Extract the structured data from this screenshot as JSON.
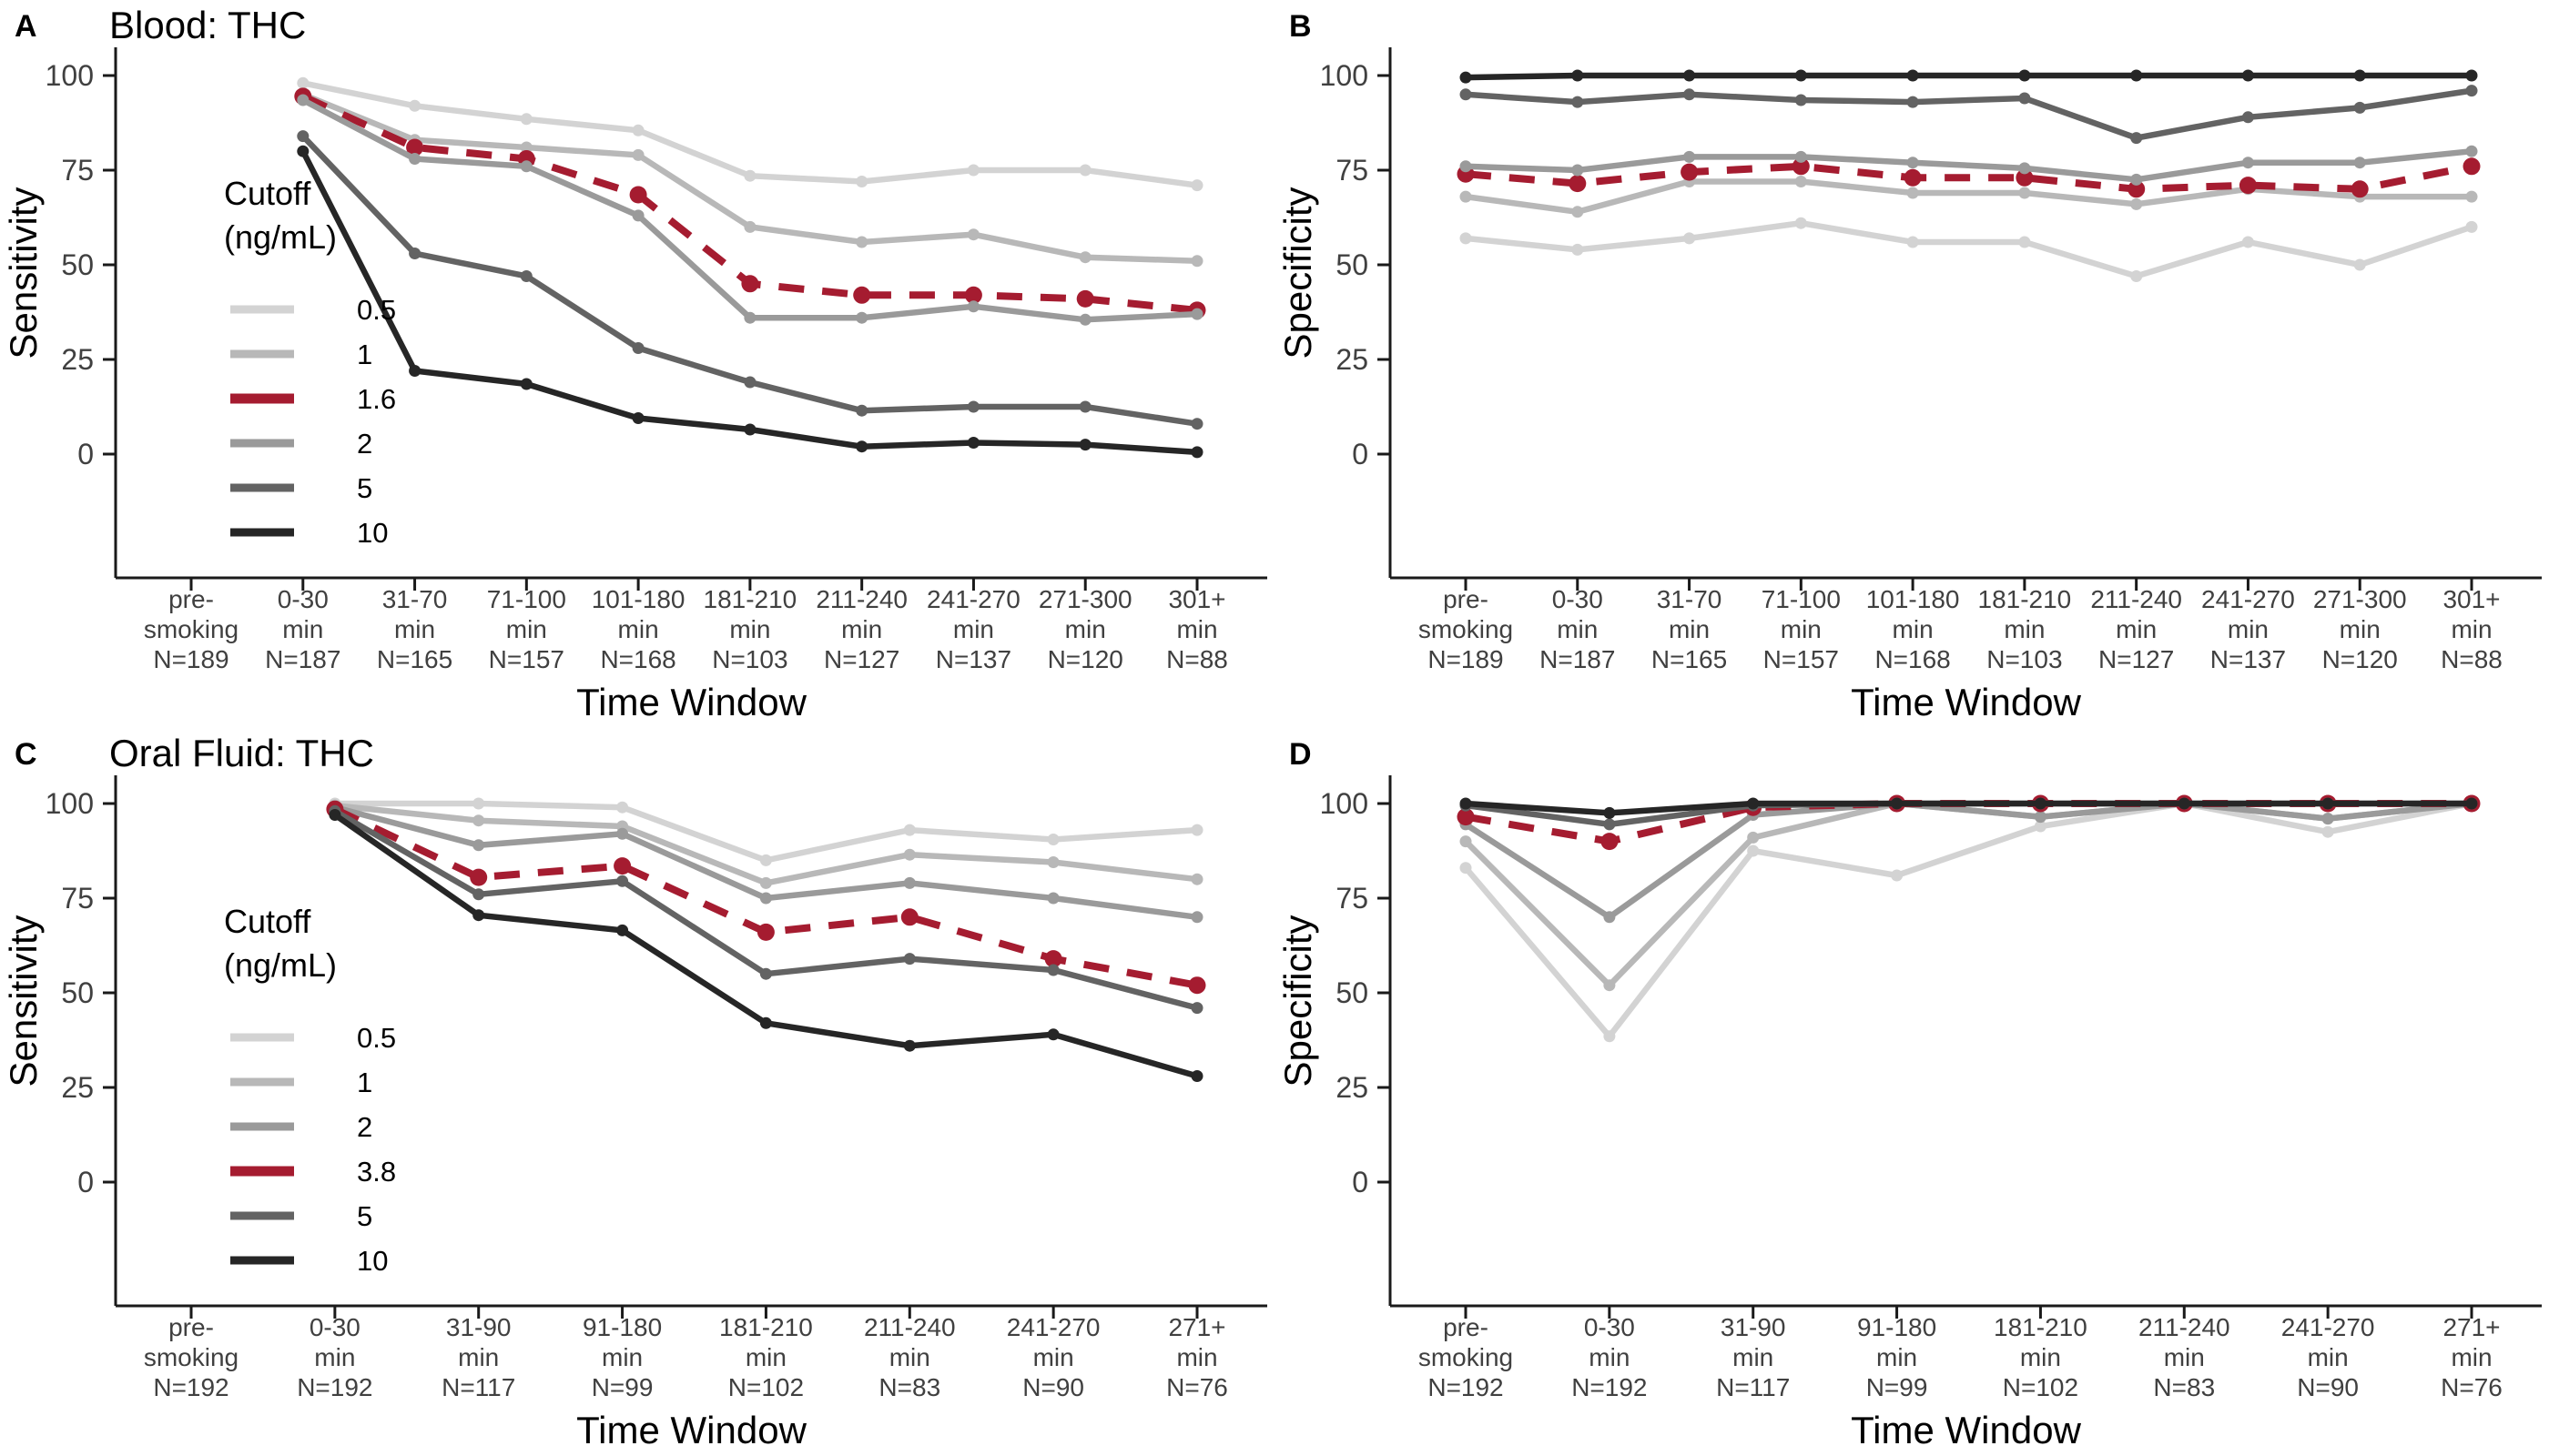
{
  "chart_data": [
    {
      "id": "A",
      "panel_label": "A",
      "type": "line",
      "title": "Blood: THC",
      "xlabel": "Time Window",
      "ylabel": "Sensitivity",
      "ylim": [
        0,
        100
      ],
      "yticks": [
        0,
        25,
        50,
        75,
        100
      ],
      "legend": {
        "title": [
          "Cutoff",
          "(ng/mL)"
        ],
        "position": "inside-left"
      },
      "categories": [
        [
          "pre-",
          "smoking",
          "N=189"
        ],
        [
          "0-30",
          "min",
          "N=187"
        ],
        [
          "31-70",
          "min",
          "N=165"
        ],
        [
          "71-100",
          "min",
          "N=157"
        ],
        [
          "101-180",
          "min",
          "N=168"
        ],
        [
          "181-210",
          "min",
          "N=103"
        ],
        [
          "211-240",
          "min",
          "N=127"
        ],
        [
          "241-270",
          "min",
          "N=137"
        ],
        [
          "271-300",
          "min",
          "N=120"
        ],
        [
          "301+",
          "min",
          "N=88"
        ]
      ],
      "series": [
        {
          "name": "0.5",
          "color": "#d3d3d3",
          "dash": false,
          "values": [
            null,
            98,
            92,
            88.5,
            85.5,
            73.5,
            72,
            75,
            75,
            71
          ]
        },
        {
          "name": "1",
          "color": "#b8b8b8",
          "dash": false,
          "values": [
            null,
            95,
            83,
            81,
            79,
            60,
            56,
            58,
            52,
            51
          ]
        },
        {
          "name": "1.6",
          "color": "#a51c30",
          "dash": true,
          "values": [
            null,
            94.5,
            81,
            78,
            68.5,
            45,
            42,
            42,
            41,
            38
          ]
        },
        {
          "name": "2",
          "color": "#9a9a9a",
          "dash": false,
          "values": [
            null,
            93.5,
            78,
            76,
            63,
            36,
            36,
            39,
            35.5,
            37
          ]
        },
        {
          "name": "5",
          "color": "#636363",
          "dash": false,
          "values": [
            null,
            84,
            53,
            47,
            28,
            19,
            11.5,
            12.5,
            12.5,
            8
          ]
        },
        {
          "name": "10",
          "color": "#262626",
          "dash": false,
          "values": [
            null,
            80,
            22,
            18.5,
            9.5,
            6.5,
            2,
            3,
            2.5,
            0.5
          ]
        }
      ]
    },
    {
      "id": "B",
      "panel_label": "B",
      "type": "line",
      "title": "",
      "xlabel": "Time Window",
      "ylabel": "Specificity",
      "ylim": [
        0,
        100
      ],
      "yticks": [
        0,
        25,
        50,
        75,
        100
      ],
      "legend": null,
      "categories": [
        [
          "pre-",
          "smoking",
          "N=189"
        ],
        [
          "0-30",
          "min",
          "N=187"
        ],
        [
          "31-70",
          "min",
          "N=165"
        ],
        [
          "71-100",
          "min",
          "N=157"
        ],
        [
          "101-180",
          "min",
          "N=168"
        ],
        [
          "181-210",
          "min",
          "N=103"
        ],
        [
          "211-240",
          "min",
          "N=127"
        ],
        [
          "241-270",
          "min",
          "N=137"
        ],
        [
          "271-300",
          "min",
          "N=120"
        ],
        [
          "301+",
          "min",
          "N=88"
        ]
      ],
      "series": [
        {
          "name": "0.5",
          "color": "#d3d3d3",
          "dash": false,
          "values": [
            57,
            54,
            57,
            61,
            56,
            56,
            47,
            56,
            50,
            60
          ]
        },
        {
          "name": "1",
          "color": "#b8b8b8",
          "dash": false,
          "values": [
            68,
            64,
            72,
            72,
            69,
            69,
            66,
            70,
            68,
            68
          ]
        },
        {
          "name": "1.6",
          "color": "#a51c30",
          "dash": true,
          "values": [
            74,
            71.5,
            74.5,
            76,
            73,
            73,
            70,
            71,
            70,
            76
          ]
        },
        {
          "name": "2",
          "color": "#9a9a9a",
          "dash": false,
          "values": [
            76,
            75,
            78.5,
            78.5,
            77,
            75.5,
            72.5,
            77,
            77,
            80
          ]
        },
        {
          "name": "5",
          "color": "#636363",
          "dash": false,
          "values": [
            95,
            93,
            95,
            93.5,
            93,
            94,
            83.5,
            89,
            91.5,
            96
          ]
        },
        {
          "name": "10",
          "color": "#262626",
          "dash": false,
          "values": [
            99.5,
            100,
            100,
            100,
            100,
            100,
            100,
            100,
            100,
            100
          ]
        }
      ]
    },
    {
      "id": "C",
      "panel_label": "C",
      "type": "line",
      "title": "Oral Fluid: THC",
      "xlabel": "Time Window",
      "ylabel": "Sensitivity",
      "ylim": [
        0,
        100
      ],
      "yticks": [
        0,
        25,
        50,
        75,
        100
      ],
      "legend": {
        "title": [
          "Cutoff",
          "(ng/mL)"
        ],
        "position": "inside-left"
      },
      "categories": [
        [
          "pre-",
          "smoking",
          "N=192"
        ],
        [
          "0-30",
          "min",
          "N=192"
        ],
        [
          "31-90",
          "min",
          "N=117"
        ],
        [
          "91-180",
          "min",
          "N=99"
        ],
        [
          "181-210",
          "min",
          "N=102"
        ],
        [
          "211-240",
          "min",
          "N=83"
        ],
        [
          "241-270",
          "min",
          "N=90"
        ],
        [
          "271+",
          "min",
          "N=76"
        ]
      ],
      "series": [
        {
          "name": "0.5",
          "color": "#d3d3d3",
          "dash": false,
          "values": [
            null,
            100,
            100,
            99,
            85,
            93,
            90.5,
            93
          ]
        },
        {
          "name": "1",
          "color": "#b8b8b8",
          "dash": false,
          "values": [
            null,
            99.5,
            95.5,
            94,
            79,
            86.5,
            84.5,
            80
          ]
        },
        {
          "name": "2",
          "color": "#9a9a9a",
          "dash": false,
          "values": [
            null,
            99,
            89,
            92,
            75,
            79,
            75,
            70
          ]
        },
        {
          "name": "3.8",
          "color": "#a51c30",
          "dash": true,
          "values": [
            null,
            98.5,
            80.5,
            83.5,
            66,
            70,
            59,
            52
          ]
        },
        {
          "name": "5",
          "color": "#636363",
          "dash": false,
          "values": [
            null,
            98,
            76,
            79.5,
            55,
            59,
            56,
            46
          ]
        },
        {
          "name": "10",
          "color": "#262626",
          "dash": false,
          "values": [
            null,
            97,
            70.5,
            66.5,
            42,
            36,
            39,
            28
          ]
        }
      ]
    },
    {
      "id": "D",
      "panel_label": "D",
      "type": "line",
      "title": "",
      "xlabel": "Time Window",
      "ylabel": "Specificity",
      "ylim": [
        0,
        100
      ],
      "yticks": [
        0,
        25,
        50,
        75,
        100
      ],
      "legend": null,
      "categories": [
        [
          "pre-",
          "smoking",
          "N=192"
        ],
        [
          "0-30",
          "min",
          "N=192"
        ],
        [
          "31-90",
          "min",
          "N=117"
        ],
        [
          "91-180",
          "min",
          "N=99"
        ],
        [
          "181-210",
          "min",
          "N=102"
        ],
        [
          "211-240",
          "min",
          "N=83"
        ],
        [
          "241-270",
          "min",
          "N=90"
        ],
        [
          "271+",
          "min",
          "N=76"
        ]
      ],
      "series": [
        {
          "name": "0.5",
          "color": "#d3d3d3",
          "dash": false,
          "values": [
            83,
            38.5,
            87.5,
            81,
            94,
            100,
            92.5,
            100
          ]
        },
        {
          "name": "1",
          "color": "#b8b8b8",
          "dash": false,
          "values": [
            90,
            52,
            91,
            100,
            96.5,
            100,
            96,
            100
          ]
        },
        {
          "name": "2",
          "color": "#9a9a9a",
          "dash": false,
          "values": [
            94.5,
            70,
            97,
            100,
            96.5,
            100,
            96,
            100
          ]
        },
        {
          "name": "3.8",
          "color": "#a51c30",
          "dash": true,
          "values": [
            96.5,
            90,
            99,
            100,
            100,
            100,
            100,
            100
          ]
        },
        {
          "name": "5",
          "color": "#636363",
          "dash": false,
          "values": [
            99.5,
            94.5,
            99.5,
            100,
            100,
            100,
            100,
            100
          ]
        },
        {
          "name": "10",
          "color": "#262626",
          "dash": false,
          "values": [
            100,
            97.5,
            100,
            100,
            100,
            100,
            100,
            100
          ]
        }
      ]
    }
  ],
  "style": {
    "tick_label_color": "#404040",
    "axis_line_color": "#1a1a1a",
    "text_color": "#000000"
  }
}
